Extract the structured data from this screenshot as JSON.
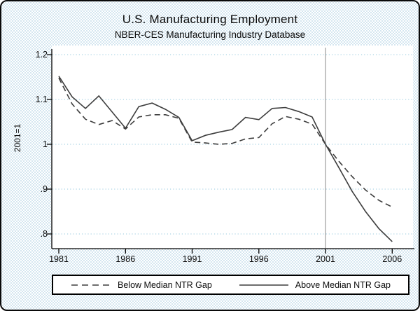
{
  "figure": {
    "title": "U.S. Manufacturing Employment",
    "subtitle": "NBER-CES Manufacturing Industry Database"
  },
  "chart_data": {
    "type": "line",
    "title": "U.S. Manufacturing Employment",
    "subtitle": "NBER-CES Manufacturing Industry Database",
    "xlabel": "",
    "ylabel": "2001=1",
    "x": [
      1981,
      1982,
      1983,
      1984,
      1985,
      1986,
      1987,
      1988,
      1989,
      1990,
      1991,
      1992,
      1993,
      1994,
      1995,
      1996,
      1997,
      1998,
      1999,
      2000,
      2001,
      2002,
      2003,
      2004,
      2005,
      2006
    ],
    "series": [
      {
        "name": "Below Median NTR Gap",
        "style": "dashed",
        "values": [
          1.148,
          1.09,
          1.056,
          1.044,
          1.053,
          1.034,
          1.061,
          1.066,
          1.066,
          1.058,
          1.005,
          1.003,
          1.0,
          1.002,
          1.012,
          1.015,
          1.046,
          1.062,
          1.056,
          1.045,
          1.0,
          0.962,
          0.928,
          0.898,
          0.875,
          0.86
        ]
      },
      {
        "name": "Above Median NTR Gap",
        "style": "solid",
        "values": [
          1.152,
          1.106,
          1.08,
          1.108,
          1.072,
          1.036,
          1.084,
          1.092,
          1.078,
          1.06,
          1.008,
          1.02,
          1.027,
          1.033,
          1.06,
          1.055,
          1.08,
          1.082,
          1.073,
          1.061,
          1.0,
          0.948,
          0.895,
          0.85,
          0.812,
          0.783
        ]
      }
    ],
    "x_ticks": [
      "1981",
      "1986",
      "1991",
      "1996",
      "2001",
      "2006"
    ],
    "x_tick_years": [
      1981,
      1986,
      1991,
      1996,
      2001,
      2006
    ],
    "y_ticks": [
      "1.2",
      "1.1",
      "1",
      ".9",
      ".8"
    ],
    "y_tick_values": [
      1.2,
      1.1,
      1.0,
      0.9,
      0.8
    ],
    "xlim": [
      1981,
      2006
    ],
    "ylim": [
      0.8,
      1.2
    ],
    "grid": true,
    "legend_position": "bottom",
    "reference_line_x": 2001,
    "colors": {
      "line": "#3d3d3d",
      "grid": "#abd3e4",
      "reference_line": "#8a8a8a",
      "axis": "#000000",
      "plot_background": "#ffffff",
      "page_dither": "#c5ddeb"
    }
  },
  "legend": {
    "items": [
      {
        "label": "Below Median NTR Gap",
        "style": "dashed"
      },
      {
        "label": "Above Median NTR Gap",
        "style": "solid"
      }
    ]
  }
}
